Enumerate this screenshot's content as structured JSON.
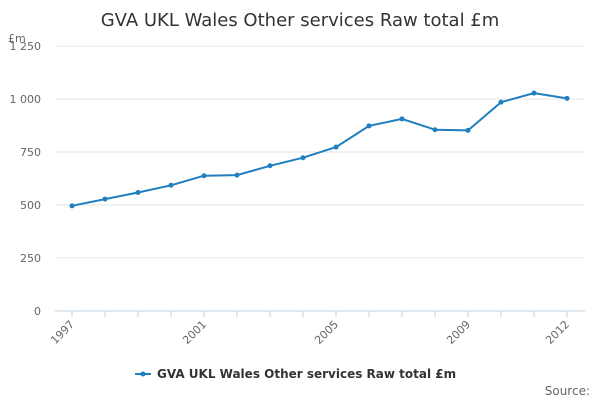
{
  "chart_data": {
    "type": "line",
    "title": "GVA UKL Wales Other services Raw total £m",
    "ylabel": "£m",
    "xlabel": "",
    "ylim": [
      0,
      1250
    ],
    "y_ticks": [
      0,
      250,
      500,
      750,
      1000,
      1250
    ],
    "y_tick_labels": [
      "0",
      "250",
      "500",
      "750",
      "1 000",
      "1 250"
    ],
    "x": [
      1997,
      1998,
      1999,
      2000,
      2001,
      2002,
      2003,
      2004,
      2005,
      2006,
      2007,
      2008,
      2009,
      2010,
      2011,
      2012
    ],
    "x_tick_labels": [
      "1997",
      "2001",
      "2005",
      "2009",
      "2012"
    ],
    "grid": true,
    "legend_position": "bottom",
    "series": [
      {
        "name": "GVA UKL Wales Other services Raw total £m",
        "color": "#1f7fbf",
        "values": [
          496,
          528,
          559,
          593,
          638,
          641,
          685,
          723,
          773,
          873,
          906,
          855,
          852,
          985,
          1028,
          1003
        ]
      }
    ]
  },
  "source": {
    "label": "Source:"
  }
}
